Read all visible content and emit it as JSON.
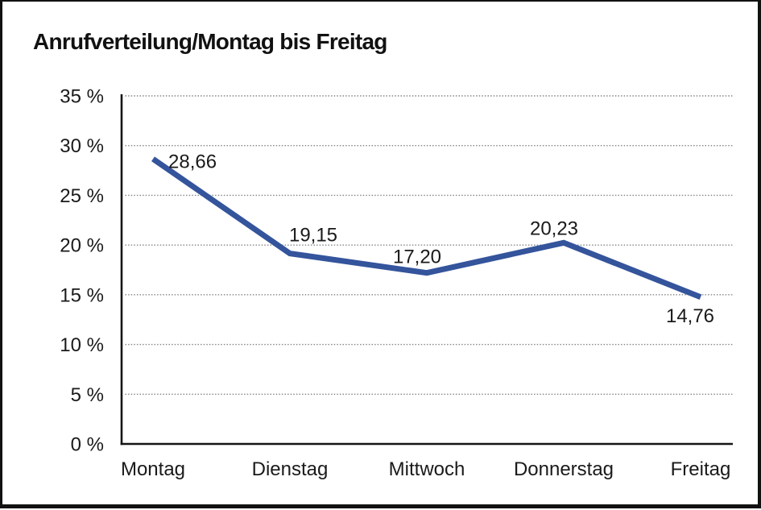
{
  "title": "Anrufverteilung/Montag bis Freitag",
  "colors": {
    "line": "#34549C",
    "grid": "#858585",
    "axis": "#151515",
    "text": "#1a1a1a",
    "background": "#ffffff",
    "frame": "#111111"
  },
  "chart_data": {
    "type": "line",
    "title": "Anrufverteilung/Montag bis Freitag",
    "categories": [
      "Montag",
      "Dienstag",
      "Mittwoch",
      "Donnerstag",
      "Freitag"
    ],
    "values": [
      28.66,
      19.15,
      17.2,
      20.23,
      14.76
    ],
    "value_labels": [
      "28,66",
      "19,15",
      "17,20",
      "20,23",
      "14,76"
    ],
    "xlabel": "",
    "ylabel": "",
    "ylim": [
      0,
      35
    ],
    "ytick_step": 5,
    "ytick_labels": [
      "0 %",
      "5 %",
      "10 %",
      "15 %",
      "20 %",
      "25 %",
      "30 %",
      "35 %"
    ],
    "grid": "horizontal-dotted",
    "legend": "none"
  }
}
